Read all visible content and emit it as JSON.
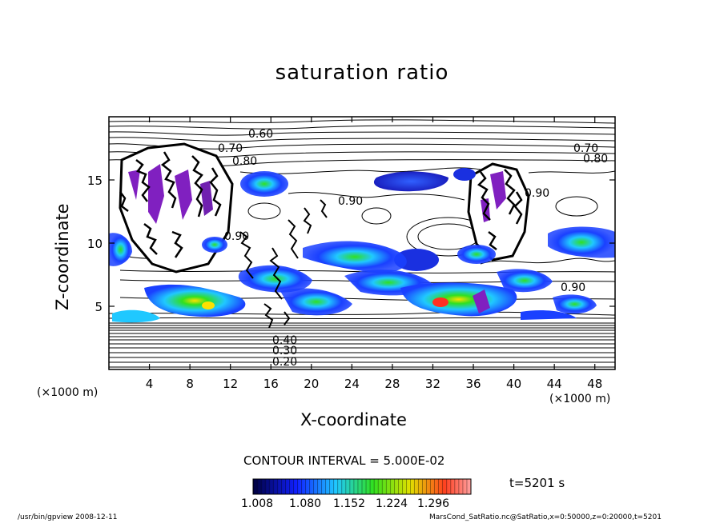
{
  "chart_data": {
    "type": "contour",
    "title": "saturation ratio",
    "xlabel": "X-coordinate",
    "ylabel": "Z-coordinate",
    "x_unit": "(×1000 m)",
    "y_unit": "(×1000 m)",
    "x_ticks": [
      4,
      8,
      12,
      16,
      20,
      24,
      28,
      32,
      36,
      40,
      44,
      48
    ],
    "y_ticks": [
      5,
      10,
      15
    ],
    "xlim": [
      0,
      50
    ],
    "ylim": [
      0,
      20
    ],
    "contour_labels": [
      "0.60",
      "0.70",
      "0.80",
      "0.90",
      "0.70",
      "0.80",
      "0.90",
      "0.90",
      "0.90",
      "0.20",
      "0.30",
      "0.40"
    ],
    "contour_interval": "CONTOUR INTERVAL = 5.000E-02",
    "colorbar_ticks": [
      "1.008",
      "1.080",
      "1.152",
      "1.224",
      "1.296"
    ],
    "time_label": "t=5201 s"
  },
  "footer": {
    "left": "/usr/bin/gpview   2008-12-11",
    "right": "MarsCond_SatRatio.nc@SatRatio,x=0:50000,z=0:20000,t=5201"
  },
  "colors": {
    "low": "#000060",
    "mid_low": "#1a40ff",
    "mid": "#20c8ff",
    "mid_high": "#30e020",
    "high": "#ffe000",
    "top": "#ff2020",
    "cloud": "#8020c0"
  }
}
